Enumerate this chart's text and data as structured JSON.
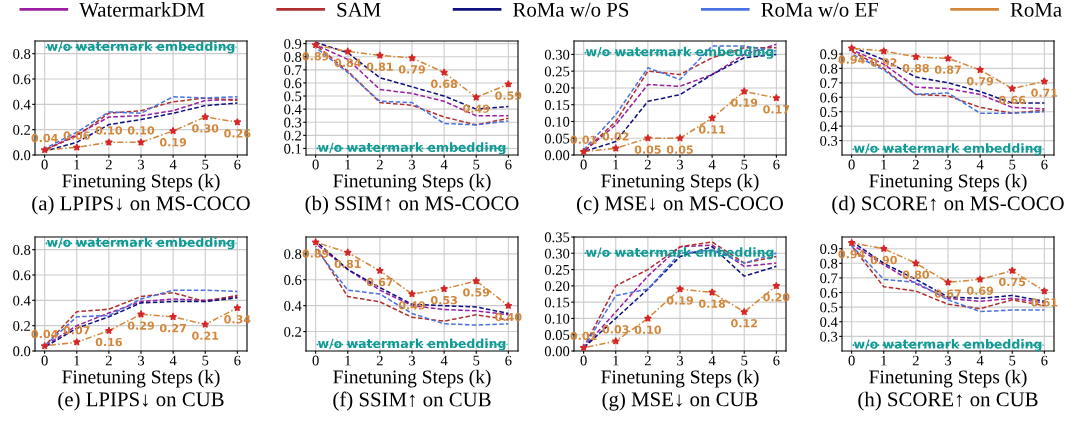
{
  "chart_data": [
    {
      "type": "line",
      "title": "(a) LPIPS↓ on MS-COCO",
      "xlabel": "Finetuning Steps (k)",
      "x": [
        0,
        1,
        2,
        3,
        4,
        5,
        6
      ],
      "xlim": [
        -0.3,
        6.3
      ],
      "xticks": [
        0,
        1,
        2,
        3,
        4,
        5,
        6
      ],
      "ylim": [
        0,
        0.9
      ],
      "yticks": [
        {
          "value": 0,
          "label": "0.0"
        },
        {
          "value": 0.2,
          "label": "0.2"
        },
        {
          "value": 0.4,
          "label": "0.4"
        },
        {
          "value": 0.6,
          "label": "0.6"
        },
        {
          "value": 0.8,
          "label": "0.8"
        }
      ],
      "grid": true,
      "legend": "top",
      "ref_lines": [
        {
          "axis": "y",
          "value": 0.85,
          "label": "w/o watermark embedding",
          "color": "#119a94",
          "line_style": "dotted"
        }
      ],
      "series": [
        {
          "name": "WatermarkDM",
          "color": "#9b1fa3",
          "line_style": "dashed",
          "values": [
            0.04,
            0.16,
            0.3,
            0.31,
            0.35,
            0.43,
            0.44
          ]
        },
        {
          "name": "SAM",
          "color": "#b03030",
          "line_style": "dashed",
          "values": [
            0.04,
            0.15,
            0.33,
            0.35,
            0.42,
            0.45,
            0.43
          ]
        },
        {
          "name": "RoMa w/o PS",
          "color": "#10107f",
          "line_style": "dashed",
          "values": [
            0.03,
            0.1,
            0.24,
            0.28,
            0.33,
            0.39,
            0.41
          ]
        },
        {
          "name": "RoMa w/o EF",
          "color": "#4a72e0",
          "line_style": "dashed",
          "values": [
            0.05,
            0.18,
            0.34,
            0.33,
            0.46,
            0.45,
            0.46
          ]
        },
        {
          "name": "RoMa",
          "color": "#d4873a",
          "line_style": "dashdot",
          "marker": "star",
          "values": [
            0.04,
            0.06,
            0.1,
            0.1,
            0.19,
            0.3,
            0.26
          ],
          "value_labels": [
            "0.04",
            "0.06",
            "0.10",
            "0.10",
            "0.19",
            "0.30",
            "0.26"
          ]
        }
      ]
    },
    {
      "type": "line",
      "title": "(b) SSIM↑ on MS-COCO",
      "xlabel": "Finetuning Steps (k)",
      "x": [
        0,
        1,
        2,
        3,
        4,
        5,
        6
      ],
      "xlim": [
        -0.3,
        6.3
      ],
      "xticks": [
        0,
        1,
        2,
        3,
        4,
        5,
        6
      ],
      "ylim": [
        0.05,
        0.92
      ],
      "yticks": [
        0.1,
        0.2,
        0.3,
        0.4,
        0.5,
        0.6,
        0.7,
        0.8,
        0.9
      ],
      "grid": true,
      "ref_lines": [
        {
          "axis": "y",
          "value": 0.1,
          "label": "w/o watermark embedding",
          "color": "#119a94",
          "line_style": "dotted"
        }
      ],
      "series": [
        {
          "name": "WatermarkDM",
          "color": "#9b1fa3",
          "line_style": "dashed",
          "values": [
            0.89,
            0.78,
            0.55,
            0.52,
            0.46,
            0.35,
            0.35
          ]
        },
        {
          "name": "SAM",
          "color": "#b03030",
          "line_style": "dashed",
          "values": [
            0.89,
            0.69,
            0.45,
            0.43,
            0.34,
            0.28,
            0.33
          ]
        },
        {
          "name": "RoMa w/o PS",
          "color": "#10107f",
          "line_style": "dashed",
          "values": [
            0.91,
            0.83,
            0.64,
            0.57,
            0.5,
            0.4,
            0.42
          ]
        },
        {
          "name": "RoMa w/o EF",
          "color": "#4a72e0",
          "line_style": "dashed",
          "values": [
            0.87,
            0.68,
            0.46,
            0.45,
            0.29,
            0.28,
            0.31
          ]
        },
        {
          "name": "RoMa",
          "color": "#d4873a",
          "line_style": "dashdot",
          "marker": "star",
          "values": [
            0.89,
            0.84,
            0.81,
            0.79,
            0.68,
            0.49,
            0.59
          ],
          "value_labels": [
            "0.89",
            "0.84",
            "0.81",
            "0.79",
            "0.68",
            "0.49",
            "0.59"
          ]
        }
      ]
    },
    {
      "type": "line",
      "title": "(c) MSE↓ on MS-COCO",
      "xlabel": "Finetuning Steps (k)",
      "x": [
        0,
        1,
        2,
        3,
        4,
        5,
        6
      ],
      "xlim": [
        -0.3,
        6.3
      ],
      "xticks": [
        0,
        1,
        2,
        3,
        4,
        5,
        6
      ],
      "ylim": [
        0,
        0.34
      ],
      "yticks": [
        {
          "value": 0,
          "label": "0.00"
        },
        {
          "value": 0.05,
          "label": "0.05"
        },
        {
          "value": 0.1,
          "label": "0.10"
        },
        {
          "value": 0.15,
          "label": "0.15"
        },
        {
          "value": 0.2,
          "label": "0.20"
        },
        {
          "value": 0.25,
          "label": "0.25"
        },
        {
          "value": 0.3,
          "label": "0.30"
        }
      ],
      "grid": true,
      "ref_lines": [
        {
          "axis": "y",
          "value": 0.305,
          "label": "w/o watermark embedding",
          "color": "#119a94",
          "line_style": "dotted"
        }
      ],
      "series": [
        {
          "name": "WatermarkDM",
          "color": "#9b1fa3",
          "line_style": "dashed",
          "values": [
            0.01,
            0.09,
            0.21,
            0.205,
            0.24,
            0.3,
            0.33
          ]
        },
        {
          "name": "SAM",
          "color": "#b03030",
          "line_style": "dashed",
          "values": [
            0.01,
            0.1,
            0.25,
            0.24,
            0.29,
            0.32,
            0.32
          ]
        },
        {
          "name": "RoMa w/o PS",
          "color": "#10107f",
          "line_style": "dashed",
          "values": [
            0.01,
            0.04,
            0.16,
            0.18,
            0.24,
            0.29,
            0.3
          ]
        },
        {
          "name": "RoMa w/o EF",
          "color": "#4a72e0",
          "line_style": "dashed",
          "values": [
            0.015,
            0.12,
            0.26,
            0.225,
            0.325,
            0.325,
            0.31
          ]
        },
        {
          "name": "RoMa",
          "color": "#d4873a",
          "line_style": "dashdot",
          "marker": "star",
          "values": [
            0.01,
            0.02,
            0.05,
            0.05,
            0.11,
            0.19,
            0.17
          ],
          "value_labels": [
            "0.01",
            "0.02",
            "0.05",
            "0.05",
            "0.11",
            "0.19",
            "0.17"
          ]
        }
      ]
    },
    {
      "type": "line",
      "title": "(d) SCORE↑ on MS-COCO",
      "xlabel": "Finetuning Steps (k)",
      "x": [
        0,
        1,
        2,
        3,
        4,
        5,
        6
      ],
      "xlim": [
        -0.3,
        6.3
      ],
      "xticks": [
        0,
        1,
        2,
        3,
        4,
        5,
        6
      ],
      "ylim": [
        0.2,
        0.99
      ],
      "yticks": [
        0.3,
        0.4,
        0.5,
        0.6,
        0.7,
        0.8,
        0.9
      ],
      "grid": true,
      "ref_lines": [
        {
          "axis": "y",
          "value": 0.24,
          "label": "w/o watermark embedding",
          "color": "#119a94",
          "line_style": "dotted"
        }
      ],
      "series": [
        {
          "name": "WatermarkDM",
          "color": "#9b1fa3",
          "line_style": "dashed",
          "values": [
            0.93,
            0.83,
            0.67,
            0.66,
            0.62,
            0.53,
            0.52
          ]
        },
        {
          "name": "SAM",
          "color": "#b03030",
          "line_style": "dashed",
          "values": [
            0.92,
            0.8,
            0.62,
            0.61,
            0.53,
            0.49,
            0.51
          ]
        },
        {
          "name": "RoMa w/o PS",
          "color": "#10107f",
          "line_style": "dashed",
          "values": [
            0.95,
            0.86,
            0.74,
            0.7,
            0.64,
            0.56,
            0.56
          ]
        },
        {
          "name": "RoMa w/o EF",
          "color": "#4a72e0",
          "line_style": "dashed",
          "values": [
            0.9,
            0.79,
            0.62,
            0.63,
            0.49,
            0.49,
            0.5
          ]
        },
        {
          "name": "RoMa",
          "color": "#d4873a",
          "line_style": "dashdot",
          "marker": "star",
          "values": [
            0.94,
            0.92,
            0.88,
            0.87,
            0.79,
            0.66,
            0.71
          ],
          "value_labels": [
            "0.94",
            "0.92",
            "0.88",
            "0.87",
            "0.79",
            "0.66",
            "0.71"
          ]
        }
      ]
    },
    {
      "type": "line",
      "title": "(e) LPIPS↓ on CUB",
      "xlabel": "Finetuning Steps (k)",
      "x": [
        0,
        1,
        2,
        3,
        4,
        5,
        6
      ],
      "xlim": [
        -0.3,
        6.3
      ],
      "xticks": [
        0,
        1,
        2,
        3,
        4,
        5,
        6
      ],
      "ylim": [
        0,
        0.9
      ],
      "yticks": [
        {
          "value": 0,
          "label": "0.0"
        },
        {
          "value": 0.2,
          "label": "0.2"
        },
        {
          "value": 0.4,
          "label": "0.4"
        },
        {
          "value": 0.6,
          "label": "0.6"
        },
        {
          "value": 0.8,
          "label": "0.8"
        }
      ],
      "grid": true,
      "ref_lines": [
        {
          "axis": "y",
          "value": 0.85,
          "label": "w/o watermark embedding",
          "color": "#119a94",
          "line_style": "dotted"
        }
      ],
      "series": [
        {
          "name": "WatermarkDM",
          "color": "#9b1fa3",
          "line_style": "dashed",
          "values": [
            0.04,
            0.2,
            0.3,
            0.39,
            0.41,
            0.4,
            0.43
          ]
        },
        {
          "name": "SAM",
          "color": "#b03030",
          "line_style": "dashed",
          "values": [
            0.04,
            0.31,
            0.33,
            0.43,
            0.46,
            0.39,
            0.44
          ]
        },
        {
          "name": "RoMa w/o PS",
          "color": "#10107f",
          "line_style": "dashed",
          "values": [
            0.03,
            0.18,
            0.27,
            0.38,
            0.39,
            0.39,
            0.42
          ]
        },
        {
          "name": "RoMa w/o EF",
          "color": "#4a72e0",
          "line_style": "dashed",
          "values": [
            0.04,
            0.27,
            0.28,
            0.41,
            0.48,
            0.48,
            0.47
          ]
        },
        {
          "name": "RoMa",
          "color": "#d4873a",
          "line_style": "dashdot",
          "marker": "star",
          "values": [
            0.04,
            0.07,
            0.16,
            0.29,
            0.27,
            0.21,
            0.34
          ],
          "value_labels": [
            "0.04",
            "0.07",
            "0.16",
            "0.29",
            "0.27",
            "0.21",
            "0.34"
          ]
        }
      ]
    },
    {
      "type": "line",
      "title": "(f) SSIM↑ on CUB",
      "xlabel": "Finetuning Steps (k)",
      "x": [
        0,
        1,
        2,
        3,
        4,
        5,
        6
      ],
      "xlim": [
        -0.3,
        6.3
      ],
      "xticks": [
        0,
        1,
        2,
        3,
        4,
        5,
        6
      ],
      "ylim": [
        0.05,
        0.93
      ],
      "yticks": [
        0.2,
        0.4,
        0.6,
        0.8
      ],
      "grid": true,
      "ref_lines": [
        {
          "axis": "y",
          "value": 0.1,
          "label": "w/o watermark embedding",
          "color": "#119a94",
          "line_style": "dotted"
        }
      ],
      "series": [
        {
          "name": "WatermarkDM",
          "color": "#9b1fa3",
          "line_style": "dashed",
          "values": [
            0.88,
            0.68,
            0.52,
            0.4,
            0.37,
            0.36,
            0.33
          ]
        },
        {
          "name": "SAM",
          "color": "#b03030",
          "line_style": "dashed",
          "values": [
            0.86,
            0.47,
            0.43,
            0.31,
            0.28,
            0.33,
            0.29
          ]
        },
        {
          "name": "RoMa w/o PS",
          "color": "#10107f",
          "line_style": "dashed",
          "values": [
            0.9,
            0.68,
            0.54,
            0.41,
            0.4,
            0.39,
            0.34
          ]
        },
        {
          "name": "RoMa w/o EF",
          "color": "#4a72e0",
          "line_style": "dashed",
          "values": [
            0.84,
            0.52,
            0.49,
            0.34,
            0.26,
            0.25,
            0.26
          ]
        },
        {
          "name": "RoMa",
          "color": "#d4873a",
          "line_style": "dashdot",
          "marker": "star",
          "values": [
            0.89,
            0.81,
            0.67,
            0.49,
            0.53,
            0.59,
            0.4
          ],
          "value_labels": [
            "0.89",
            "0.81",
            "0.67",
            "0.49",
            "0.53",
            "0.59",
            "0.40"
          ]
        }
      ]
    },
    {
      "type": "line",
      "title": "(g) MSE↓ on CUB",
      "xlabel": "Finetuning Steps (k)",
      "x": [
        0,
        1,
        2,
        3,
        4,
        5,
        6
      ],
      "xlim": [
        -0.3,
        6.3
      ],
      "xticks": [
        0,
        1,
        2,
        3,
        4,
        5,
        6
      ],
      "ylim": [
        0,
        0.35
      ],
      "yticks": [
        {
          "value": 0,
          "label": "0.00"
        },
        {
          "value": 0.05,
          "label": "0.05"
        },
        {
          "value": 0.1,
          "label": "0.10"
        },
        {
          "value": 0.15,
          "label": "0.15"
        },
        {
          "value": 0.2,
          "label": "0.20"
        },
        {
          "value": 0.25,
          "label": "0.25"
        },
        {
          "value": 0.3,
          "label": "0.30"
        },
        {
          "value": 0.35,
          "label": "0.35"
        }
      ],
      "grid": true,
      "ref_lines": [
        {
          "axis": "y",
          "value": 0.3,
          "label": "w/o watermark embedding",
          "color": "#119a94",
          "line_style": "dotted"
        }
      ],
      "series": [
        {
          "name": "WatermarkDM",
          "color": "#9b1fa3",
          "line_style": "dashed",
          "values": [
            0.01,
            0.12,
            0.23,
            0.32,
            0.325,
            0.26,
            0.27
          ]
        },
        {
          "name": "SAM",
          "color": "#b03030",
          "line_style": "dashed",
          "values": [
            0.01,
            0.2,
            0.25,
            0.32,
            0.335,
            0.27,
            0.29
          ]
        },
        {
          "name": "RoMa w/o PS",
          "color": "#10107f",
          "line_style": "dashed",
          "values": [
            0.01,
            0.1,
            0.19,
            0.29,
            0.32,
            0.23,
            0.26
          ]
        },
        {
          "name": "RoMa w/o EF",
          "color": "#4a72e0",
          "line_style": "dashed",
          "values": [
            0.01,
            0.17,
            0.19,
            0.3,
            0.31,
            0.27,
            0.3
          ]
        },
        {
          "name": "RoMa",
          "color": "#d4873a",
          "line_style": "dashdot",
          "marker": "star",
          "values": [
            0.01,
            0.03,
            0.1,
            0.19,
            0.18,
            0.12,
            0.2
          ],
          "value_labels": [
            "0.01",
            "0.03",
            "0.10",
            "0.19",
            "0.18",
            "0.12",
            "0.20"
          ]
        }
      ]
    },
    {
      "type": "line",
      "title": "(h) SCORE↑ on CUB",
      "xlabel": "Finetuning Steps (k)",
      "x": [
        0,
        1,
        2,
        3,
        4,
        5,
        6
      ],
      "xlim": [
        -0.3,
        6.3
      ],
      "xticks": [
        0,
        1,
        2,
        3,
        4,
        5,
        6
      ],
      "ylim": [
        0.2,
        0.98
      ],
      "yticks": [
        0.3,
        0.4,
        0.5,
        0.6,
        0.7,
        0.8,
        0.9
      ],
      "grid": true,
      "ref_lines": [
        {
          "axis": "y",
          "value": 0.24,
          "label": "w/o watermark embedding",
          "color": "#119a94",
          "line_style": "dotted"
        }
      ],
      "series": [
        {
          "name": "WatermarkDM",
          "color": "#9b1fa3",
          "line_style": "dashed",
          "values": [
            0.93,
            0.79,
            0.66,
            0.56,
            0.54,
            0.56,
            0.53
          ]
        },
        {
          "name": "SAM",
          "color": "#b03030",
          "line_style": "dashed",
          "values": [
            0.92,
            0.64,
            0.61,
            0.52,
            0.49,
            0.55,
            0.51
          ]
        },
        {
          "name": "RoMa w/o PS",
          "color": "#10107f",
          "line_style": "dashed",
          "values": [
            0.95,
            0.8,
            0.69,
            0.57,
            0.56,
            0.58,
            0.54
          ]
        },
        {
          "name": "RoMa w/o EF",
          "color": "#4a72e0",
          "line_style": "dashed",
          "values": [
            0.92,
            0.69,
            0.67,
            0.55,
            0.47,
            0.48,
            0.48
          ]
        },
        {
          "name": "RoMa",
          "color": "#d4873a",
          "line_style": "dashdot",
          "marker": "star",
          "values": [
            0.94,
            0.9,
            0.8,
            0.67,
            0.69,
            0.75,
            0.61
          ],
          "value_labels": [
            "0.94",
            "0.90",
            "0.80",
            "0.67",
            "0.69",
            "0.75",
            "0.61"
          ]
        }
      ]
    }
  ]
}
